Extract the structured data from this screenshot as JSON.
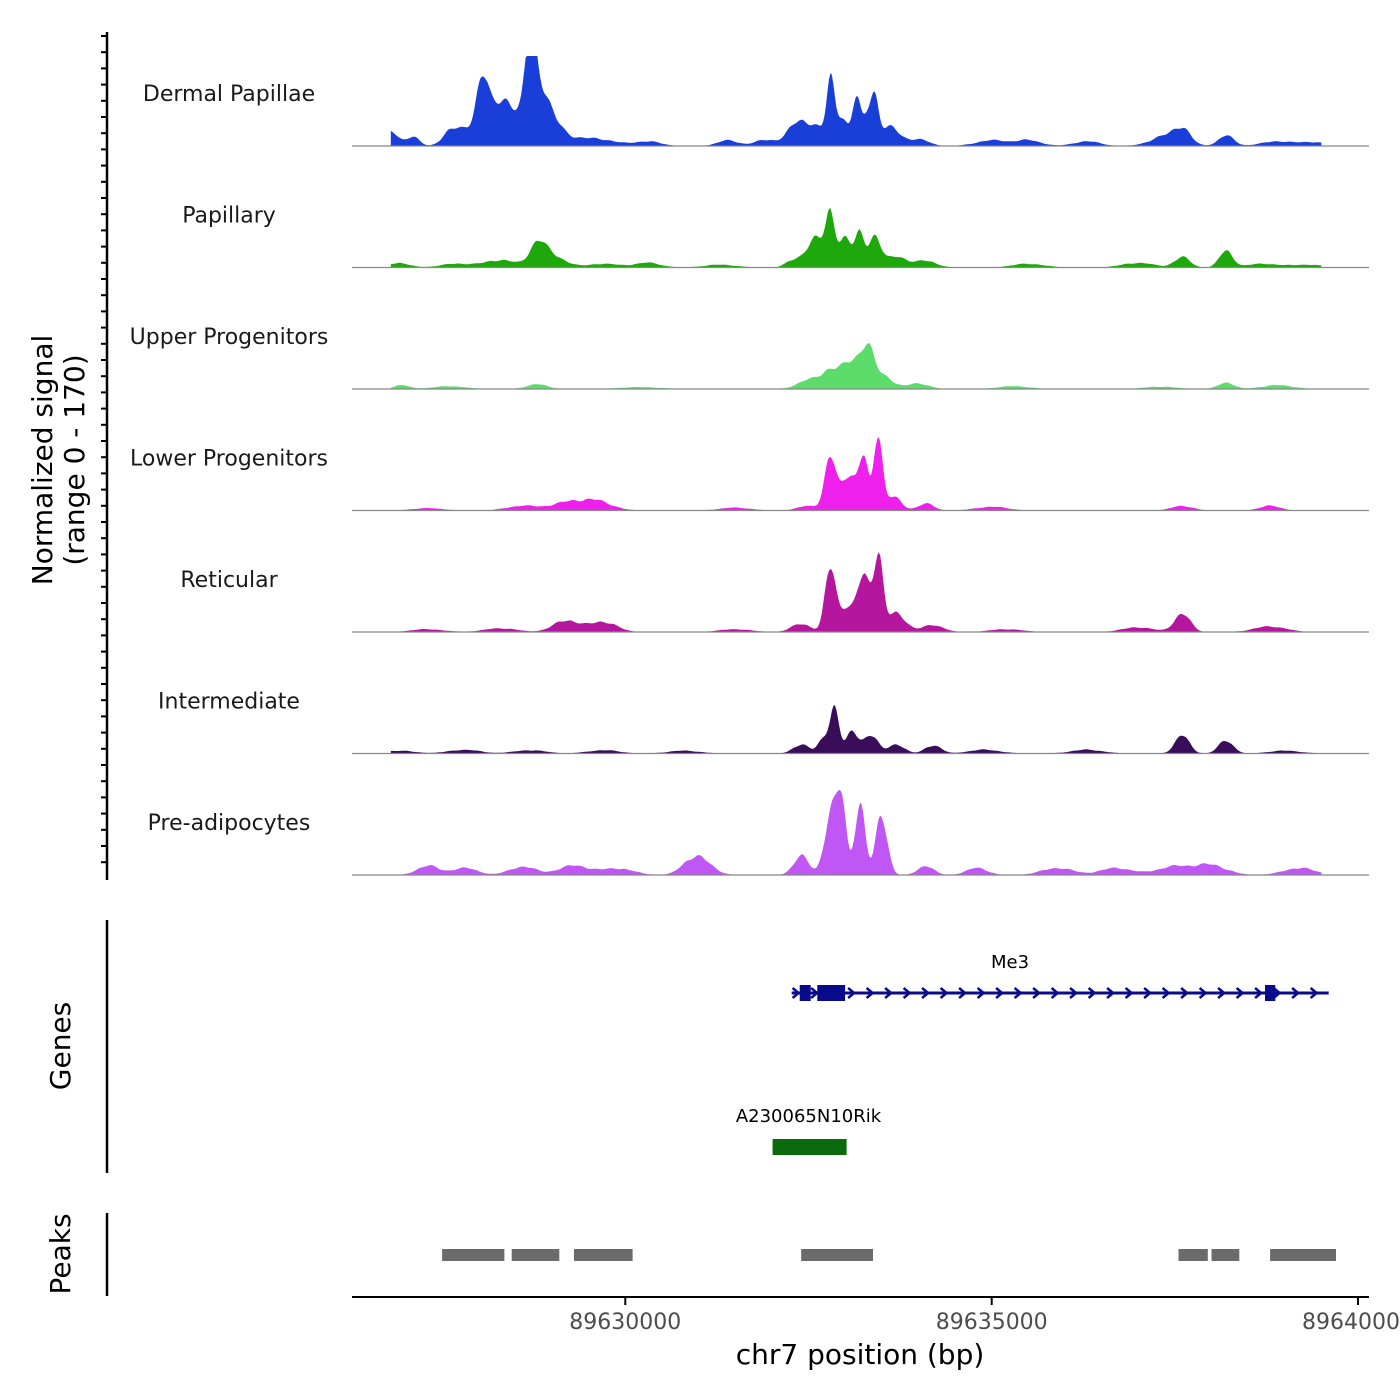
{
  "chart_data": {
    "type": "area",
    "title": "",
    "ylabel_line1": "Normalized signal",
    "ylabel_line2": "(range 0 - 170)",
    "ylim": [
      0,
      170
    ],
    "xlabel": "chr7 position (bp)",
    "xlim": [
      89626270,
      89640150
    ],
    "x_ticks": [
      {
        "value": 89630000,
        "label": "89630000"
      },
      {
        "value": 89635000,
        "label": "89635000"
      },
      {
        "value": 89640000,
        "label": "89640000"
      }
    ],
    "genes_label": "Genes",
    "peaks_label": "Peaks",
    "tracks": [
      {
        "name": "Dermal Papillae",
        "color": "#1a3fd9",
        "peaks": [
          [
            89626800,
            30,
            150
          ],
          [
            89627100,
            20,
            120
          ],
          [
            89627600,
            25,
            150
          ],
          [
            89627900,
            40,
            250
          ],
          [
            89628050,
            110,
            110
          ],
          [
            89628300,
            70,
            200
          ],
          [
            89628500,
            50,
            260
          ],
          [
            89628700,
            150,
            90
          ],
          [
            89628800,
            120,
            160
          ],
          [
            89629000,
            45,
            200
          ],
          [
            89629300,
            14,
            300
          ],
          [
            89629700,
            12,
            300
          ],
          [
            89630300,
            10,
            250
          ],
          [
            89631400,
            12,
            200
          ],
          [
            89631900,
            12,
            200
          ],
          [
            89632300,
            14,
            150
          ],
          [
            89632500,
            50,
            300
          ],
          [
            89632800,
            112,
            75
          ],
          [
            89632950,
            60,
            120
          ],
          [
            89633150,
            95,
            75
          ],
          [
            89633300,
            55,
            100
          ],
          [
            89633400,
            85,
            80
          ],
          [
            89633600,
            40,
            200
          ],
          [
            89634000,
            14,
            200
          ],
          [
            89635000,
            12,
            300
          ],
          [
            89635500,
            12,
            250
          ],
          [
            89636300,
            10,
            250
          ],
          [
            89637400,
            22,
            300
          ],
          [
            89637600,
            28,
            150
          ],
          [
            89638200,
            22,
            150
          ],
          [
            89638900,
            10,
            300
          ],
          [
            89639400,
            8,
            250
          ]
        ]
      },
      {
        "name": "Papillary",
        "color": "#1fa80c",
        "peaks": [
          [
            89626900,
            10,
            200
          ],
          [
            89627700,
            8,
            300
          ],
          [
            89628300,
            16,
            300
          ],
          [
            89628800,
            45,
            150
          ],
          [
            89629000,
            25,
            250
          ],
          [
            89629700,
            8,
            300
          ],
          [
            89630300,
            10,
            250
          ],
          [
            89631300,
            6,
            300
          ],
          [
            89632300,
            15,
            150
          ],
          [
            89632600,
            60,
            180
          ],
          [
            89632800,
            105,
            90
          ],
          [
            89633000,
            60,
            120
          ],
          [
            89633200,
            70,
            90
          ],
          [
            89633400,
            65,
            120
          ],
          [
            89633700,
            25,
            180
          ],
          [
            89634100,
            15,
            200
          ],
          [
            89635500,
            8,
            300
          ],
          [
            89637000,
            10,
            300
          ],
          [
            89637600,
            22,
            150
          ],
          [
            89638200,
            35,
            130
          ],
          [
            89638700,
            8,
            300
          ],
          [
            89639300,
            6,
            300
          ]
        ]
      },
      {
        "name": "Upper Progenitors",
        "color": "#5bdc6b",
        "peaks": [
          [
            89626950,
            8,
            150
          ],
          [
            89627600,
            6,
            300
          ],
          [
            89628800,
            10,
            200
          ],
          [
            89630200,
            4,
            400
          ],
          [
            89632500,
            18,
            220
          ],
          [
            89632800,
            38,
            180
          ],
          [
            89633100,
            58,
            180
          ],
          [
            89633300,
            70,
            120
          ],
          [
            89633500,
            30,
            200
          ],
          [
            89634000,
            12,
            200
          ],
          [
            89635300,
            6,
            300
          ],
          [
            89637300,
            5,
            300
          ],
          [
            89638200,
            14,
            150
          ],
          [
            89638900,
            8,
            300
          ]
        ]
      },
      {
        "name": "Lower Progenitors",
        "color": "#ef20ec",
        "peaks": [
          [
            89627300,
            5,
            300
          ],
          [
            89628600,
            10,
            300
          ],
          [
            89629200,
            16,
            300
          ],
          [
            89629600,
            20,
            300
          ],
          [
            89631500,
            6,
            300
          ],
          [
            89632500,
            10,
            200
          ],
          [
            89632800,
            110,
            110
          ],
          [
            89633050,
            80,
            130
          ],
          [
            89633250,
            110,
            90
          ],
          [
            89633450,
            170,
            80
          ],
          [
            89633650,
            30,
            150
          ],
          [
            89634100,
            15,
            150
          ],
          [
            89635000,
            8,
            300
          ],
          [
            89637600,
            10,
            200
          ],
          [
            89638800,
            10,
            200
          ]
        ]
      },
      {
        "name": "Reticular",
        "color": "#b5169e",
        "peaks": [
          [
            89627300,
            6,
            300
          ],
          [
            89628300,
            8,
            300
          ],
          [
            89629200,
            25,
            250
          ],
          [
            89629700,
            22,
            250
          ],
          [
            89631500,
            6,
            300
          ],
          [
            89632400,
            18,
            180
          ],
          [
            89632800,
            140,
            100
          ],
          [
            89633000,
            50,
            120
          ],
          [
            89633250,
            120,
            130
          ],
          [
            89633450,
            160,
            90
          ],
          [
            89633700,
            40,
            180
          ],
          [
            89634200,
            15,
            200
          ],
          [
            89635200,
            6,
            300
          ],
          [
            89637000,
            10,
            300
          ],
          [
            89637600,
            40,
            150
          ],
          [
            89638800,
            12,
            300
          ]
        ]
      },
      {
        "name": "Intermediate",
        "color": "#3a0d5b",
        "peaks": [
          [
            89626900,
            6,
            300
          ],
          [
            89627800,
            8,
            300
          ],
          [
            89628700,
            7,
            300
          ],
          [
            89629700,
            7,
            300
          ],
          [
            89630800,
            6,
            300
          ],
          [
            89632400,
            20,
            150
          ],
          [
            89632700,
            28,
            100
          ],
          [
            89632850,
            100,
            90
          ],
          [
            89633100,
            45,
            120
          ],
          [
            89633350,
            40,
            130
          ],
          [
            89633700,
            20,
            150
          ],
          [
            89634200,
            18,
            150
          ],
          [
            89634900,
            8,
            300
          ],
          [
            89636300,
            8,
            300
          ],
          [
            89637600,
            38,
            140
          ],
          [
            89638200,
            28,
            140
          ],
          [
            89639000,
            6,
            300
          ]
        ]
      },
      {
        "name": "Pre-adipocytes",
        "color": "#c056f4",
        "peaks": [
          [
            89627300,
            20,
            200
          ],
          [
            89627800,
            15,
            250
          ],
          [
            89628600,
            18,
            250
          ],
          [
            89629300,
            20,
            300
          ],
          [
            89629900,
            14,
            300
          ],
          [
            89630900,
            30,
            200
          ],
          [
            89631100,
            20,
            200
          ],
          [
            89632400,
            40,
            150
          ],
          [
            89632800,
            130,
            120
          ],
          [
            89632950,
            150,
            90
          ],
          [
            89633200,
            155,
            100
          ],
          [
            89633500,
            130,
            110
          ],
          [
            89634100,
            20,
            150
          ],
          [
            89634800,
            15,
            200
          ],
          [
            89635900,
            15,
            300
          ],
          [
            89636700,
            15,
            300
          ],
          [
            89637500,
            18,
            350
          ],
          [
            89638000,
            20,
            300
          ],
          [
            89639200,
            15,
            300
          ]
        ]
      }
    ],
    "genes": [
      {
        "name": "Me3",
        "color": "#0a0a8c",
        "start": 89632270,
        "end": 89639600,
        "strand": "+",
        "exons": [
          [
            89632380,
            89632530
          ],
          [
            89632620,
            89633000
          ],
          [
            89638730,
            89638870
          ]
        ]
      },
      {
        "name": "A230065N10Rik",
        "color": "#0b6a0b",
        "start": 89632010,
        "end": 89633020,
        "strand": "",
        "exons": [
          [
            89632010,
            89633020
          ]
        ]
      }
    ],
    "peaks": [
      [
        89627500,
        89628350
      ],
      [
        89628450,
        89629100
      ],
      [
        89629300,
        89630100
      ],
      [
        89632400,
        89633380
      ],
      [
        89637550,
        89637950
      ],
      [
        89638000,
        89638380
      ],
      [
        89638800,
        89639700
      ]
    ]
  }
}
